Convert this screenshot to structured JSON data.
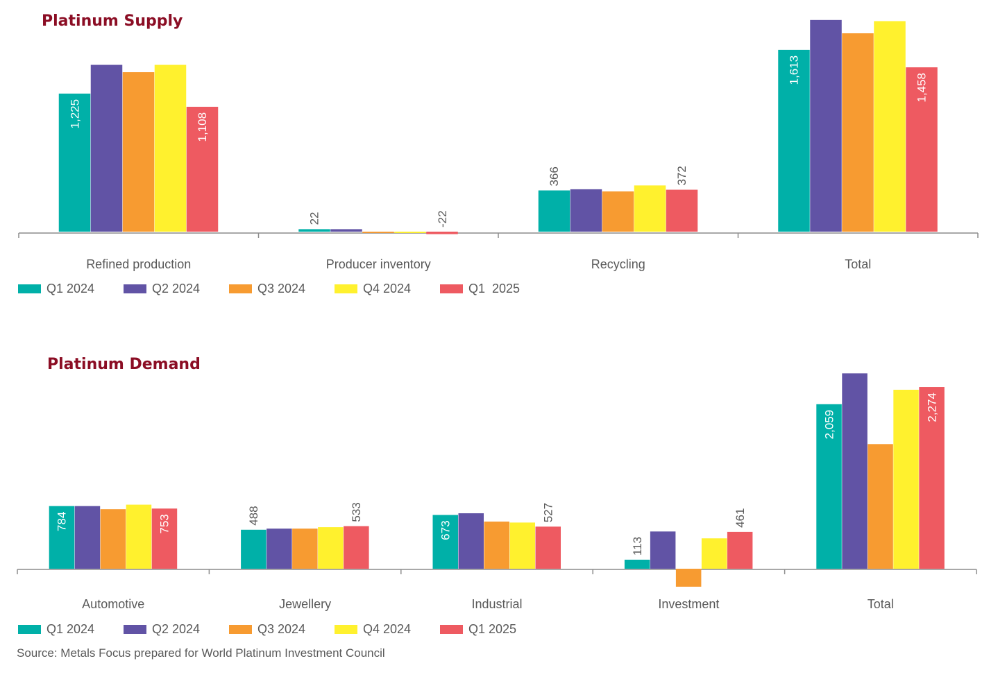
{
  "chart_data": [
    {
      "type": "bar",
      "title": "Platinum Supply",
      "categories": [
        "Refined production",
        "Producer inventory",
        "Recycling",
        "Total"
      ],
      "series": [
        {
          "name": "Q1 2024",
          "color": "#00b0a8",
          "values": [
            1225,
            22,
            366,
            1613
          ]
        },
        {
          "name": "Q2 2024",
          "color": "#6153a5",
          "values": [
            1480,
            22,
            376,
            1878
          ]
        },
        {
          "name": "Q3 2024",
          "color": "#f79b31",
          "values": [
            1415,
            -12,
            357,
            1760
          ]
        },
        {
          "name": "Q4 2024",
          "color": "#fff12e",
          "values": [
            1480,
            -12,
            410,
            1868
          ]
        },
        {
          "name": "Q1  2025",
          "color": "#ee5a61",
          "values": [
            1108,
            -22,
            372,
            1458
          ]
        }
      ],
      "data_labels": [
        {
          "series": 0,
          "category": 0,
          "text": "1,225"
        },
        {
          "series": 4,
          "category": 0,
          "text": "1,108"
        },
        {
          "series": 0,
          "category": 1,
          "text": "22"
        },
        {
          "series": 4,
          "category": 1,
          "text": "-22"
        },
        {
          "series": 0,
          "category": 2,
          "text": "366"
        },
        {
          "series": 4,
          "category": 2,
          "text": "372"
        },
        {
          "series": 0,
          "category": 3,
          "text": "1,613"
        },
        {
          "series": 4,
          "category": 3,
          "text": "1,458"
        }
      ],
      "legend_position": "bottom-left",
      "grid": false
    },
    {
      "type": "bar",
      "title": "Platinum Demand",
      "categories": [
        "Automotive",
        "Jewellery",
        "Industrial",
        "Investment",
        "Total"
      ],
      "series": [
        {
          "name": "Q1 2024",
          "color": "#00b0a8",
          "values": [
            784,
            488,
            673,
            113,
            2059
          ]
        },
        {
          "name": "Q2 2024",
          "color": "#6153a5",
          "values": [
            784,
            502,
            694,
            466,
            2445
          ]
        },
        {
          "name": "Q3 2024",
          "color": "#f79b31",
          "values": [
            745,
            502,
            590,
            -225,
            1560
          ]
        },
        {
          "name": "Q4 2024",
          "color": "#fff12e",
          "values": [
            802,
            520,
            578,
            380,
            2240
          ]
        },
        {
          "name": "Q1 2025",
          "color": "#ee5a61",
          "values": [
            753,
            533,
            527,
            461,
            2274
          ]
        }
      ],
      "data_labels": [
        {
          "series": 0,
          "category": 0,
          "text": "784"
        },
        {
          "series": 4,
          "category": 0,
          "text": "753"
        },
        {
          "series": 0,
          "category": 1,
          "text": "488"
        },
        {
          "series": 4,
          "category": 1,
          "text": "533"
        },
        {
          "series": 0,
          "category": 2,
          "text": "673"
        },
        {
          "series": 4,
          "category": 2,
          "text": "527"
        },
        {
          "series": 0,
          "category": 3,
          "text": "113"
        },
        {
          "series": 4,
          "category": 3,
          "text": "461"
        },
        {
          "series": 0,
          "category": 4,
          "text": "2,059"
        },
        {
          "series": 4,
          "category": 4,
          "text": "2,274"
        }
      ],
      "legend_position": "bottom-left",
      "grid": false
    }
  ],
  "source": "Source: Metals Focus prepared for World Platinum Investment Council"
}
